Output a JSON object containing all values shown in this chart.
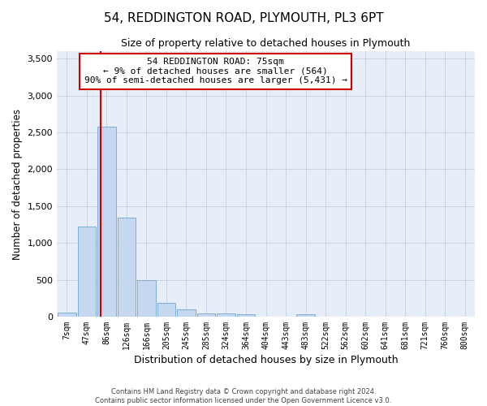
{
  "title": "54, REDDINGTON ROAD, PLYMOUTH, PL3 6PT",
  "subtitle": "Size of property relative to detached houses in Plymouth",
  "xlabel": "Distribution of detached houses by size in Plymouth",
  "ylabel": "Number of detached properties",
  "bin_labels": [
    "7sqm",
    "47sqm",
    "86sqm",
    "126sqm",
    "166sqm",
    "205sqm",
    "245sqm",
    "285sqm",
    "324sqm",
    "364sqm",
    "404sqm",
    "443sqm",
    "483sqm",
    "522sqm",
    "562sqm",
    "602sqm",
    "641sqm",
    "681sqm",
    "721sqm",
    "760sqm",
    "800sqm"
  ],
  "bar_heights": [
    50,
    1220,
    2580,
    1340,
    490,
    190,
    95,
    45,
    40,
    30,
    0,
    0,
    30,
    0,
    0,
    0,
    0,
    0,
    0,
    0,
    0
  ],
  "bar_color": "#c5d8f0",
  "bar_edge_color": "#7eadd4",
  "grid_color": "#c8d4e8",
  "background_color": "#e8eef8",
  "vline_color": "#cc0000",
  "annotation_line1": "54 REDDINGTON ROAD: 75sqm",
  "annotation_line2": "← 9% of detached houses are smaller (564)",
  "annotation_line3": "90% of semi-detached houses are larger (5,431) →",
  "annotation_box_color": "#ffffff",
  "annotation_box_edge": "#cc0000",
  "ylim": [
    0,
    3600
  ],
  "yticks": [
    0,
    500,
    1000,
    1500,
    2000,
    2500,
    3000,
    3500
  ],
  "footer_line1": "Contains HM Land Registry data © Crown copyright and database right 2024.",
  "footer_line2": "Contains public sector information licensed under the Open Government Licence v3.0."
}
